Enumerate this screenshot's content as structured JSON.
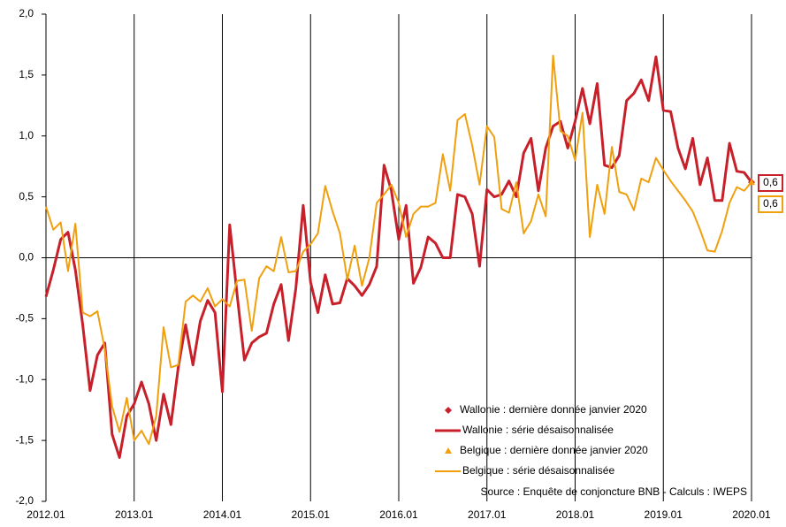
{
  "chart_data": {
    "type": "line",
    "categories": [
      "2012.01",
      null,
      null,
      null,
      null,
      null,
      null,
      null,
      null,
      null,
      null,
      null,
      "2013.01",
      null,
      null,
      null,
      null,
      null,
      null,
      null,
      null,
      null,
      null,
      null,
      "2014.01",
      null,
      null,
      null,
      null,
      null,
      null,
      null,
      null,
      null,
      null,
      null,
      "2015.01",
      null,
      null,
      null,
      null,
      null,
      null,
      null,
      null,
      null,
      null,
      null,
      "2016.01",
      null,
      null,
      null,
      null,
      null,
      null,
      null,
      null,
      null,
      null,
      null,
      "2017.01",
      null,
      null,
      null,
      null,
      null,
      null,
      null,
      null,
      null,
      null,
      null,
      "2018.01",
      null,
      null,
      null,
      null,
      null,
      null,
      null,
      null,
      null,
      null,
      null,
      "2019.01",
      null,
      null,
      null,
      null,
      null,
      null,
      null,
      null,
      null,
      null,
      null,
      "2020.01"
    ],
    "ylim": [
      -2,
      2
    ],
    "yticks": [
      {
        "value": -2,
        "label": "-2,0"
      },
      {
        "value": -1.5,
        "label": "-1,5"
      },
      {
        "value": -1,
        "label": "-1,0"
      },
      {
        "value": -0.5,
        "label": "-0,5"
      },
      {
        "value": 0,
        "label": "0,0"
      },
      {
        "value": 0.5,
        "label": "0,5"
      },
      {
        "value": 1,
        "label": "1,0"
      },
      {
        "value": 1.5,
        "label": "1,5"
      },
      {
        "value": 2,
        "label": "2,0"
      }
    ],
    "legend": "bottom-right",
    "source": "Source : Enquête de conjoncture BNB - Calculs : IWEPS",
    "series": [
      {
        "name": "Wallonie : dernière donnée janvier 2020",
        "color": "#c8202a",
        "marker": "diamond",
        "values": [
          null,
          null,
          null,
          null,
          null,
          null,
          null,
          null,
          null,
          null,
          null,
          null,
          null,
          null,
          null,
          null,
          null,
          null,
          null,
          null,
          null,
          null,
          null,
          null,
          null,
          null,
          null,
          null,
          null,
          null,
          null,
          null,
          null,
          null,
          null,
          null,
          null,
          null,
          null,
          null,
          null,
          null,
          null,
          null,
          null,
          null,
          null,
          null,
          null,
          null,
          null,
          null,
          null,
          null,
          null,
          null,
          null,
          null,
          null,
          null,
          null,
          null,
          null,
          null,
          null,
          null,
          null,
          null,
          null,
          null,
          null,
          null,
          null,
          null,
          null,
          null,
          null,
          null,
          null,
          null,
          null,
          null,
          null,
          null,
          null,
          null,
          null,
          null,
          null,
          null,
          null,
          null,
          null,
          null,
          null,
          null,
          0.62
        ],
        "value_labels": [
          null,
          null,
          null,
          null,
          null,
          null,
          null,
          null,
          null,
          null,
          null,
          null,
          null,
          null,
          null,
          null,
          null,
          null,
          null,
          null,
          null,
          null,
          null,
          null,
          null,
          null,
          null,
          null,
          null,
          null,
          null,
          null,
          null,
          null,
          null,
          null,
          null,
          null,
          null,
          null,
          null,
          null,
          null,
          null,
          null,
          null,
          null,
          null,
          null,
          null,
          null,
          null,
          null,
          null,
          null,
          null,
          null,
          null,
          null,
          null,
          null,
          null,
          null,
          null,
          null,
          null,
          null,
          null,
          null,
          null,
          null,
          null,
          null,
          null,
          null,
          null,
          null,
          null,
          null,
          null,
          null,
          null,
          null,
          null,
          null,
          null,
          null,
          null,
          null,
          null,
          null,
          null,
          null,
          null,
          null,
          null,
          "0,6"
        ]
      },
      {
        "name": "Wallonie : série désaisonnalisée",
        "color": "#c8202a",
        "values": [
          -0.32,
          -0.1,
          0.15,
          0.21,
          -0.1,
          -0.55,
          -1.09,
          -0.8,
          -0.7,
          -1.45,
          -1.64,
          -1.3,
          -1.2,
          -1.02,
          -1.2,
          -1.5,
          -1.12,
          -1.37,
          -0.9,
          -0.55,
          -0.88,
          -0.52,
          -0.35,
          -0.45,
          -1.1,
          0.27,
          -0.3,
          -0.84,
          -0.7,
          -0.65,
          -0.62,
          -0.38,
          -0.22,
          -0.68,
          -0.25,
          0.43,
          -0.2,
          -0.45,
          -0.14,
          -0.38,
          -0.37,
          -0.17,
          -0.23,
          -0.31,
          -0.22,
          -0.07,
          0.76,
          0.55,
          0.15,
          0.43,
          -0.21,
          -0.08,
          0.17,
          0.12,
          0.0,
          0.0,
          0.52,
          0.5,
          0.36,
          -0.07,
          0.56,
          0.5,
          0.52,
          0.63,
          0.5,
          0.86,
          0.98,
          0.55,
          0.9,
          1.08,
          1.12,
          0.9,
          1.12,
          1.39,
          1.1,
          1.43,
          0.76,
          0.74,
          0.84,
          1.29,
          1.35,
          1.46,
          1.29,
          1.65,
          1.21,
          1.2,
          0.9,
          0.73,
          0.98,
          0.6,
          0.82,
          0.47,
          0.47,
          0.94,
          0.71,
          0.7,
          0.62
        ]
      },
      {
        "name": "Belgique : dernière donnée janvier 2020",
        "color": "#f0a00f",
        "marker": "triangle",
        "values": [
          null,
          null,
          null,
          null,
          null,
          null,
          null,
          null,
          null,
          null,
          null,
          null,
          null,
          null,
          null,
          null,
          null,
          null,
          null,
          null,
          null,
          null,
          null,
          null,
          null,
          null,
          null,
          null,
          null,
          null,
          null,
          null,
          null,
          null,
          null,
          null,
          null,
          null,
          null,
          null,
          null,
          null,
          null,
          null,
          null,
          null,
          null,
          null,
          null,
          null,
          null,
          null,
          null,
          null,
          null,
          null,
          null,
          null,
          null,
          null,
          null,
          null,
          null,
          null,
          null,
          null,
          null,
          null,
          null,
          null,
          null,
          null,
          null,
          null,
          null,
          null,
          null,
          null,
          null,
          null,
          null,
          null,
          null,
          null,
          null,
          null,
          null,
          null,
          null,
          null,
          null,
          null,
          null,
          null,
          null,
          null,
          0.62
        ],
        "value_labels": [
          null,
          null,
          null,
          null,
          null,
          null,
          null,
          null,
          null,
          null,
          null,
          null,
          null,
          null,
          null,
          null,
          null,
          null,
          null,
          null,
          null,
          null,
          null,
          null,
          null,
          null,
          null,
          null,
          null,
          null,
          null,
          null,
          null,
          null,
          null,
          null,
          null,
          null,
          null,
          null,
          null,
          null,
          null,
          null,
          null,
          null,
          null,
          null,
          null,
          null,
          null,
          null,
          null,
          null,
          null,
          null,
          null,
          null,
          null,
          null,
          null,
          null,
          null,
          null,
          null,
          null,
          null,
          null,
          null,
          null,
          null,
          null,
          null,
          null,
          null,
          null,
          null,
          null,
          null,
          null,
          null,
          null,
          null,
          null,
          null,
          null,
          null,
          null,
          null,
          null,
          null,
          null,
          null,
          null,
          null,
          null,
          "0,6"
        ]
      },
      {
        "name": "Belgique : série désaisonnalisée",
        "color": "#f0a00f",
        "values": [
          0.42,
          0.23,
          0.29,
          -0.11,
          0.28,
          -0.45,
          -0.48,
          -0.44,
          -0.75,
          -1.22,
          -1.43,
          -1.15,
          -1.5,
          -1.42,
          -1.53,
          -1.3,
          -0.57,
          -0.9,
          -0.88,
          -0.36,
          -0.31,
          -0.36,
          -0.25,
          -0.4,
          -0.34,
          -0.4,
          -0.19,
          -0.18,
          -0.6,
          -0.17,
          -0.07,
          -0.11,
          0.17,
          -0.12,
          -0.11,
          0.05,
          0.11,
          0.2,
          0.59,
          0.38,
          0.2,
          -0.18,
          0.1,
          -0.23,
          0.0,
          0.45,
          0.52,
          0.6,
          0.45,
          0.17,
          0.36,
          0.42,
          0.42,
          0.45,
          0.85,
          0.55,
          1.13,
          1.18,
          0.92,
          0.6,
          1.08,
          0.99,
          0.4,
          0.37,
          0.62,
          0.2,
          0.3,
          0.52,
          0.34,
          1.66,
          1.04,
          1.0,
          0.8,
          1.19,
          0.17,
          0.6,
          0.36,
          0.91,
          0.54,
          0.52,
          0.39,
          0.65,
          0.62,
          0.82,
          0.72,
          0.63,
          0.55,
          0.47,
          0.38,
          0.23,
          0.06,
          0.05,
          0.22,
          0.45,
          0.58,
          0.55,
          0.62
        ]
      }
    ]
  }
}
